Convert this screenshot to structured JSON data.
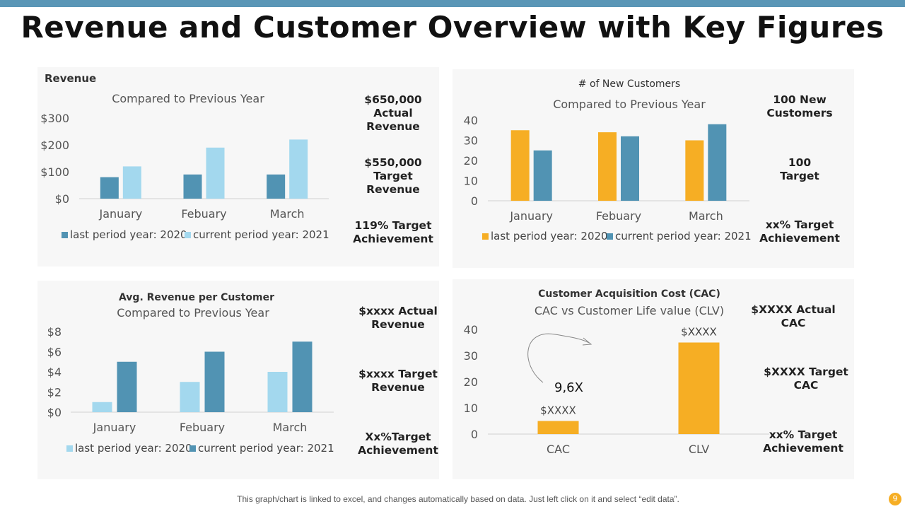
{
  "title": "Revenue and Customer Overview with Key Figures",
  "colors": {
    "dark_blue": "#5193b3",
    "light_blue": "#a3d8ee",
    "orange": "#f6ae24",
    "accent_bar": "#5a96b6"
  },
  "footer": "This graph/chart is linked to excel, and changes automatically based on data. Just left click on it and select “edit data”.",
  "page_number": "9",
  "key_figures": {
    "revenue": [
      "$650,000 Actual Revenue",
      "$550,000 Target Revenue",
      "119% Target Achievement"
    ],
    "customers": [
      "100 New Customers",
      "100 Target",
      "xx% Target Achievement"
    ],
    "arpc": [
      "$xxxx Actual Revenue",
      "$xxxx Target Revenue",
      "Xx%Target Achievement"
    ],
    "cac": [
      "$XXXX Actual CAC",
      "$XXXX Target CAC",
      "xx% Target Achievement"
    ]
  },
  "chart_data": [
    {
      "type": "bar",
      "heading": "Revenue",
      "title": "Compared to Previous Year",
      "categories": [
        "January",
        "Febuary",
        "March"
      ],
      "series": [
        {
          "name": "last period year: 2020",
          "color": "#5193b3",
          "values": [
            80,
            90,
            90
          ]
        },
        {
          "name": "current period year: 2021",
          "color": "#a3d8ee",
          "values": [
            120,
            190,
            220
          ]
        }
      ],
      "ylim": [
        0,
        300
      ],
      "yticks": [
        "$0",
        "$100",
        "$200",
        "$300"
      ],
      "legend": "bottom",
      "grid": false
    },
    {
      "type": "bar",
      "heading": "# of New Customers",
      "title": "Compared to Previous Year",
      "categories": [
        "January",
        "Febuary",
        "March"
      ],
      "series": [
        {
          "name": "last period year: 2020",
          "color": "#f6ae24",
          "values": [
            35,
            34,
            30
          ]
        },
        {
          "name": "current period year: 2021",
          "color": "#5193b3",
          "values": [
            25,
            32,
            38
          ]
        }
      ],
      "ylim": [
        0,
        40
      ],
      "yticks": [
        "0",
        "10",
        "20",
        "30",
        "40"
      ],
      "legend": "bottom",
      "grid": false
    },
    {
      "type": "bar",
      "heading": "Avg. Revenue per Customer",
      "title": "Compared to Previous Year",
      "categories": [
        "January",
        "Febuary",
        "March"
      ],
      "series": [
        {
          "name": "last period year: 2020",
          "color": "#a3d8ee",
          "values": [
            1,
            3,
            4
          ]
        },
        {
          "name": "current period year: 2021",
          "color": "#5193b3",
          "values": [
            5,
            6,
            7
          ]
        }
      ],
      "ylim": [
        0,
        8
      ],
      "yticks": [
        "$0",
        "$2",
        "$4",
        "$6",
        "$8"
      ],
      "legend": "bottom",
      "grid": false
    },
    {
      "type": "bar",
      "heading": "Customer Acquisition Cost (CAC)",
      "title": "CAC vs Customer Life  value (CLV)",
      "categories": [
        "CAC",
        "CLV"
      ],
      "series": [
        {
          "color": "#f6ae24",
          "values": [
            5,
            35
          ],
          "data_labels": [
            "$XXXX",
            "$XXXX"
          ]
        }
      ],
      "ylim": [
        0,
        40
      ],
      "yticks": [
        "0",
        "10",
        "20",
        "30",
        "40"
      ],
      "annotation": "9,6X",
      "legend": "none",
      "grid": false
    }
  ]
}
